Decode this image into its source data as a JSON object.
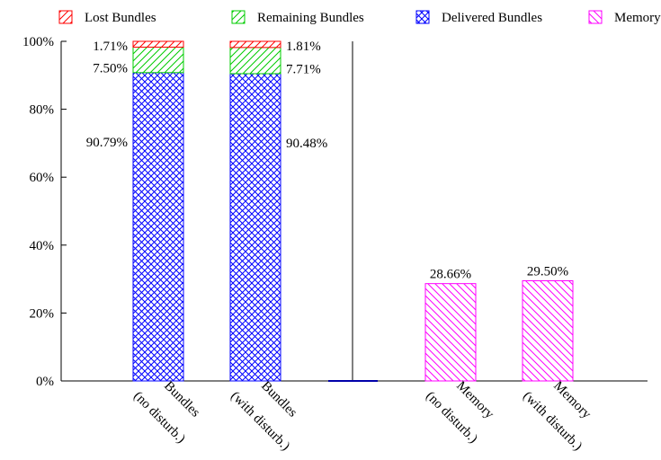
{
  "chart_data": {
    "type": "bar",
    "stacked": true,
    "ylim": [
      0,
      100
    ],
    "yticks": [
      "0%",
      "20%",
      "40%",
      "60%",
      "80%",
      "100%"
    ],
    "categories": [
      "Bundles\n(no disturb.)",
      "Bundles\n(with disturb.)",
      "Memory\n(no disturb.)",
      "Memory\n(with disturb.)"
    ],
    "series": [
      {
        "name": "Delivered Bundles",
        "color": "#0000ff",
        "pattern": "crosshatch",
        "values": [
          90.79,
          90.48,
          null,
          null
        ],
        "labels": [
          "90.79%",
          "90.48%",
          null,
          null
        ]
      },
      {
        "name": "Remaining Bundles",
        "color": "#00cc00",
        "pattern": "diagonal-up",
        "values": [
          7.5,
          7.71,
          null,
          null
        ],
        "labels": [
          "7.50%",
          "7.71%",
          null,
          null
        ]
      },
      {
        "name": "Lost Bundles",
        "color": "#ff0000",
        "pattern": "diagonal-up",
        "values": [
          1.71,
          1.81,
          null,
          null
        ],
        "labels": [
          "1.71%",
          "1.81%",
          null,
          null
        ]
      },
      {
        "name": "Memory",
        "color": "#ff00ff",
        "pattern": "diagonal-down",
        "values": [
          null,
          null,
          28.66,
          29.5
        ],
        "labels": [
          null,
          null,
          "28.66%",
          "29.50%"
        ]
      }
    ],
    "legend_order": [
      "Lost Bundles",
      "Remaining Bundles",
      "Delivered Bundles",
      "Memory"
    ],
    "legend_position": "top",
    "grid": false
  }
}
